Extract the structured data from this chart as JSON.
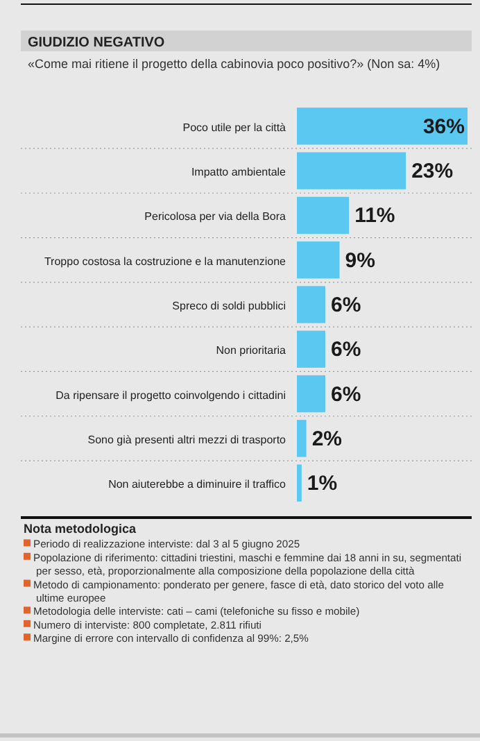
{
  "chart_data": {
    "type": "bar",
    "orientation": "horizontal",
    "title": "GIUDIZIO NEGATIVO",
    "subtitle": "«Come mai ritiene il progetto della cabinovia poco positivo?» (Non sa: 4%)",
    "categories": [
      "Poco utile per la città",
      "Impatto ambientale",
      "Pericolosa per via della Bora",
      "Troppo costosa la costruzione e la manutenzione",
      "Spreco di soldi pubblici",
      "Non prioritaria",
      "Da ripensare il progetto coinvolgendo i cittadini",
      "Sono già presenti altri mezzi di trasporto",
      "Non aiuterebbe a diminuire il traffico"
    ],
    "values": [
      36,
      23,
      11,
      9,
      6,
      6,
      6,
      2,
      1
    ],
    "value_labels": [
      "36%",
      "23%",
      "11%",
      "9%",
      "6%",
      "6%",
      "6%",
      "2%",
      "1%"
    ],
    "color": "#5bc8f2",
    "xlim": [
      0,
      36
    ],
    "tick_labels": "y",
    "annotations": [
      "Nota metodologica",
      "Periodo di realizzazione interviste: dal 3 al 5 giugno 2025",
      "Popolazione di riferimento: cittadini triestini, maschi e femmine dai 18 anni in su, segmentati per sesso, età, proporzionalmente alla composizione della popolazione della città",
      "Metodo di campionamento: ponderato per genere, fasce di età, dato storico del voto alle ultime europee",
      "Metodologia delle interviste: cati – cami (telefoniche su fisso e mobile)",
      "Numero di interviste: 800 completate, 2.811 rifiuti",
      "Margine di errore con intervallo di confidenza al 99%: 2,5%"
    ]
  }
}
